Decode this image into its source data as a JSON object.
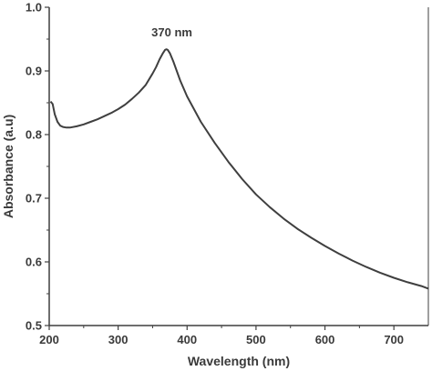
{
  "chart_data": {
    "type": "line",
    "title": "",
    "xlabel": "Wavelength (nm)",
    "ylabel": "Absorbance (a.u)",
    "xlim": [
      200,
      750
    ],
    "ylim": [
      0.5,
      1.0
    ],
    "x_ticks": [
      200,
      300,
      400,
      500,
      600,
      700
    ],
    "y_ticks": [
      "0.5",
      "0.6",
      "0.7",
      "0.8",
      "0.9",
      "1.0"
    ],
    "grid": false,
    "legend": "none",
    "line_color": "#3f3f3f",
    "annotations": [
      {
        "text": "370 nm",
        "x": 370,
        "y": 0.96
      }
    ],
    "series": [
      {
        "x": [
          202,
          205,
          208,
          212,
          216,
          220,
          225,
          230,
          240,
          250,
          260,
          270,
          280,
          290,
          300,
          310,
          320,
          330,
          340,
          350,
          355,
          360,
          365,
          368,
          370,
          372,
          375,
          380,
          385,
          390,
          400,
          420,
          440,
          460,
          480,
          500,
          520,
          540,
          560,
          580,
          600,
          620,
          640,
          660,
          680,
          700,
          720,
          740,
          750
        ],
        "y": [
          0.852,
          0.848,
          0.832,
          0.82,
          0.814,
          0.812,
          0.811,
          0.811,
          0.813,
          0.816,
          0.82,
          0.824,
          0.829,
          0.834,
          0.84,
          0.847,
          0.856,
          0.866,
          0.878,
          0.896,
          0.906,
          0.918,
          0.928,
          0.933,
          0.934,
          0.933,
          0.928,
          0.915,
          0.9,
          0.885,
          0.86,
          0.82,
          0.787,
          0.757,
          0.73,
          0.706,
          0.686,
          0.668,
          0.652,
          0.638,
          0.625,
          0.613,
          0.602,
          0.592,
          0.583,
          0.575,
          0.568,
          0.562,
          0.558
        ]
      }
    ]
  }
}
